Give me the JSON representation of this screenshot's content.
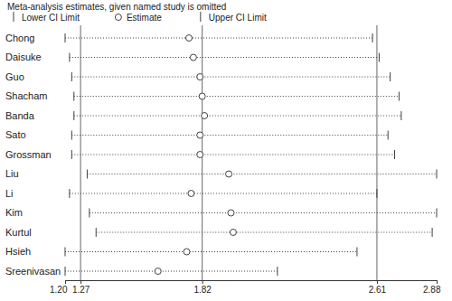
{
  "chart_data": {
    "type": "forest",
    "orientation": "horizontal",
    "title": "Meta-analysis estimates, given named study is omitted",
    "categories": [
      "Chong",
      "Daisuke",
      "Guo",
      "Shacham",
      "Banda",
      "Sato",
      "Grossman",
      "Liu",
      "Li",
      "Kim",
      "Kurtul",
      "Hsieh",
      "Sreenivasan"
    ],
    "series": [
      {
        "name": "Lower CI Limit",
        "marker": "line",
        "color": "#404040",
        "values": [
          1.2,
          1.22,
          1.23,
          1.24,
          1.24,
          1.23,
          1.23,
          1.3,
          1.22,
          1.31,
          1.34,
          1.2,
          1.2
        ]
      },
      {
        "name": "Estimate",
        "marker": "circle",
        "color": "#404040",
        "values": [
          1.76,
          1.78,
          1.81,
          1.82,
          1.83,
          1.81,
          1.81,
          1.94,
          1.77,
          1.95,
          1.96,
          1.75,
          1.62
        ]
      },
      {
        "name": "Upper CI Limit",
        "marker": "line",
        "color": "#404040",
        "values": [
          2.59,
          2.62,
          2.67,
          2.71,
          2.72,
          2.66,
          2.69,
          2.88,
          2.61,
          2.88,
          2.86,
          2.52,
          2.16
        ]
      }
    ],
    "xlim": [
      1.2,
      2.88
    ],
    "xticks": [
      {
        "value": 1.2,
        "label": "1.20"
      },
      1.27,
      1.82,
      2.61,
      2.88
    ],
    "reference_lines": [
      1.27,
      1.82,
      2.61
    ],
    "line_style": "dotted",
    "legend": "top-left"
  }
}
